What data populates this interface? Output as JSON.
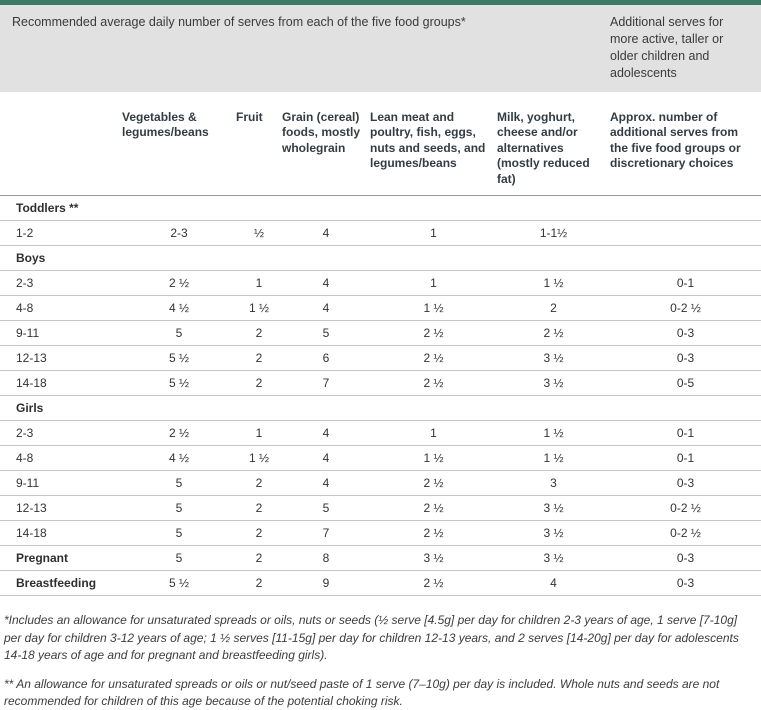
{
  "colors": {
    "accent_green": "#3d7a66",
    "band_grey": "#e1e1e1",
    "header_text": "#333c45",
    "body_text": "#333333",
    "row_line": "#c6c6c6"
  },
  "banner": {
    "left": "Recommended average daily number of serves from each of the five food groups*",
    "right": "Additional serves for more active, taller or older children and adolescents"
  },
  "table": {
    "columns": [
      "",
      "Vegetables & legumes/beans",
      "Fruit",
      "Grain (cereal) foods, mostly wholegrain",
      "Lean meat and poultry, fish, eggs, nuts and seeds, and legumes/beans",
      "Milk, yoghurt, cheese and/or alternatives (mostly reduced fat)",
      "Approx. number of additional serves from the five food groups or discretionary choices"
    ],
    "rows": [
      {
        "type": "section",
        "label": "Toddlers **",
        "values": [
          "",
          "",
          "",
          "",
          "",
          ""
        ]
      },
      {
        "type": "data",
        "label": "1-2",
        "values": [
          "2-3",
          "½",
          "4",
          "1",
          "1-1½",
          ""
        ]
      },
      {
        "type": "section",
        "label": "Boys",
        "values": [
          "",
          "",
          "",
          "",
          "",
          ""
        ]
      },
      {
        "type": "data",
        "label": "2-3",
        "values": [
          "2 ½",
          "1",
          "4",
          "1",
          "1 ½",
          "0-1"
        ]
      },
      {
        "type": "data",
        "label": "4-8",
        "values": [
          "4 ½",
          "1 ½",
          "4",
          "1 ½",
          "2",
          "0-2 ½"
        ]
      },
      {
        "type": "data",
        "label": "9-11",
        "values": [
          "5",
          "2",
          "5",
          "2 ½",
          "2 ½",
          "0-3"
        ]
      },
      {
        "type": "data",
        "label": "12-13",
        "values": [
          "5 ½",
          "2",
          "6",
          "2 ½",
          "3 ½",
          "0-3"
        ]
      },
      {
        "type": "data",
        "label": "14-18",
        "values": [
          "5 ½",
          "2",
          "7",
          "2 ½",
          "3 ½",
          "0-5"
        ]
      },
      {
        "type": "section",
        "label": "Girls",
        "values": [
          "",
          "",
          "",
          "",
          "",
          ""
        ]
      },
      {
        "type": "data",
        "label": "2-3",
        "values": [
          "2 ½",
          "1",
          "4",
          "1",
          "1 ½",
          "0-1"
        ]
      },
      {
        "type": "data",
        "label": "4-8",
        "values": [
          "4 ½",
          "1 ½",
          "4",
          "1 ½",
          "1 ½",
          "0-1"
        ]
      },
      {
        "type": "data",
        "label": "9-11",
        "values": [
          "5",
          "2",
          "4",
          "2 ½",
          "3",
          "0-3"
        ]
      },
      {
        "type": "data",
        "label": "12-13",
        "values": [
          "5",
          "2",
          "5",
          "2 ½",
          "3 ½",
          "0-2 ½"
        ]
      },
      {
        "type": "data",
        "label": "14-18",
        "values": [
          "5",
          "2",
          "7",
          "2 ½",
          "3 ½",
          "0-2 ½"
        ]
      },
      {
        "type": "data",
        "label": "Pregnant",
        "bold_label": true,
        "values": [
          "5",
          "2",
          "8",
          "3 ½",
          "3 ½",
          "0-3"
        ]
      },
      {
        "type": "data",
        "label": "Breastfeeding",
        "bold_label": true,
        "values": [
          "5 ½",
          "2",
          "9",
          "2 ½",
          "4",
          "0-3"
        ]
      }
    ]
  },
  "footnotes": {
    "note1": "*Includes an allowance for unsaturated spreads or oils, nuts or seeds (½ serve [4.5g] per day for children 2-3 years of age, 1 serve [7-10g] per day for children 3-12 years of age; 1 ½ serves [11-15g] per day for children 12-13 years, and 2 serves [14-20g] per day for adolescents 14-18 years of age and for pregnant and breastfeeding girls).",
    "note2": "** An allowance for unsaturated spreads or oils or nut/seed paste of 1 serve (7–10g) per day is included. Whole nuts and seeds are not recommended for children of this age because of the potential choking risk."
  }
}
